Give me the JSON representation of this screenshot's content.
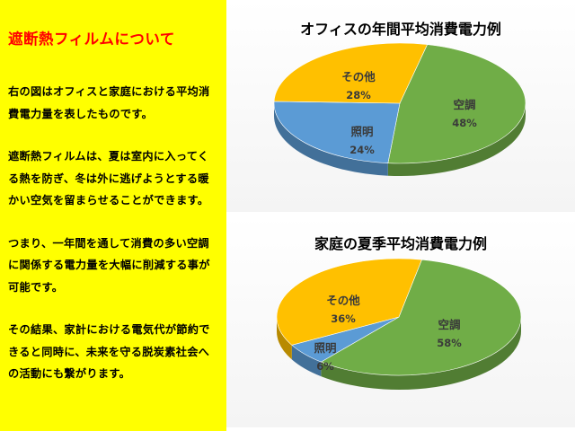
{
  "sidebar": {
    "title": "遮断熱フィルムについて",
    "paragraphs": [
      "右の図はオフィスと家庭における平均消費電力量を表したものです。",
      "遮断熱フィルムは、夏は室内に入ってくる熱を防ぎ、冬は外に逃げようとする暖かい空気を留まらせることができます。",
      "つまり、一年間を通して消費の多い空調に関係する電力量を大幅に削減する事が可能です。",
      "その結果、家計における電気代が節約できると同時に、未来を守る脱炭素社会への活動にも繋がります。"
    ]
  },
  "colors": {
    "sidebar_bg": "#ffff00",
    "title": "#ff0000",
    "aircon": "#70ad47",
    "lighting": "#5b9bd5",
    "other": "#ffc000"
  },
  "chart_data": [
    {
      "type": "pie",
      "title": "オフィスの年間平均消費電力例",
      "slices": [
        {
          "label": "空調",
          "value": 48,
          "value_label": "48%",
          "color": "#70ad47"
        },
        {
          "label": "照明",
          "value": 24,
          "value_label": "24%",
          "color": "#5b9bd5"
        },
        {
          "label": "その他",
          "value": 28,
          "value_label": "28%",
          "color": "#ffc000"
        }
      ],
      "style": "3d",
      "legend": "none"
    },
    {
      "type": "pie",
      "title": "家庭の夏季平均消費電力例",
      "slices": [
        {
          "label": "空調",
          "value": 58,
          "value_label": "58%",
          "color": "#70ad47"
        },
        {
          "label": "照明",
          "value": 6,
          "value_label": "6%",
          "color": "#5b9bd5"
        },
        {
          "label": "その他",
          "value": 36,
          "value_label": "36%",
          "color": "#ffc000"
        }
      ],
      "style": "3d",
      "legend": "none"
    }
  ]
}
